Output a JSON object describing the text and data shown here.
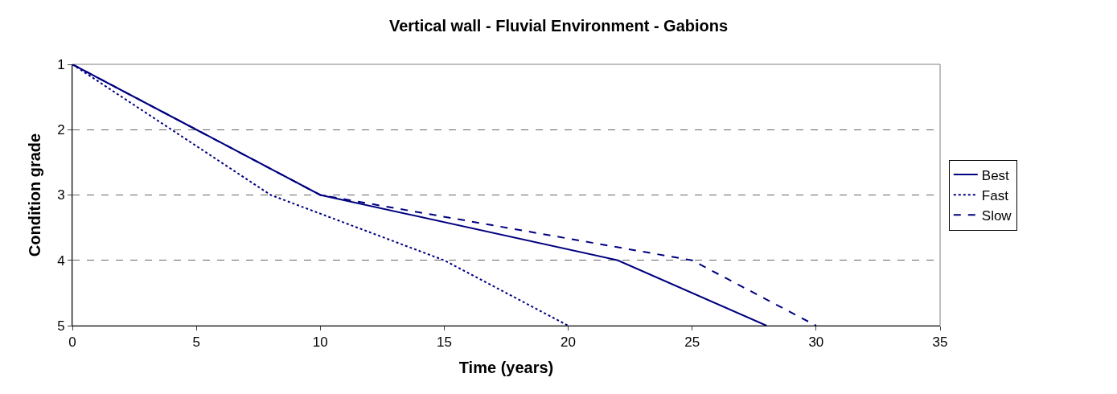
{
  "chart_data": {
    "type": "line",
    "title": "Vertical wall - Fluvial Environment - Gabions",
    "xlabel": "Time (years)",
    "ylabel": "Condition grade",
    "xlim": [
      0,
      35
    ],
    "xticks": [
      0,
      5,
      10,
      15,
      20,
      25,
      30,
      35
    ],
    "ylim": [
      5,
      1
    ],
    "yticks": [
      1,
      2,
      3,
      4,
      5
    ],
    "grid": "y",
    "legend": "right",
    "marker": "none",
    "series": [
      {
        "name": "Best",
        "color": "#000080",
        "line_style": "solid",
        "x": [
          0,
          10,
          22,
          28
        ],
        "values": [
          1,
          3,
          4,
          5
        ]
      },
      {
        "name": "Fast",
        "color": "#000080",
        "line_style": "dotted",
        "x": [
          0,
          8,
          15,
          20
        ],
        "values": [
          1,
          3,
          4,
          5
        ]
      },
      {
        "name": "Slow",
        "color": "#000080",
        "line_style": "dashed",
        "x": [
          0,
          10,
          25,
          30
        ],
        "values": [
          1,
          3,
          4,
          5
        ]
      }
    ]
  }
}
